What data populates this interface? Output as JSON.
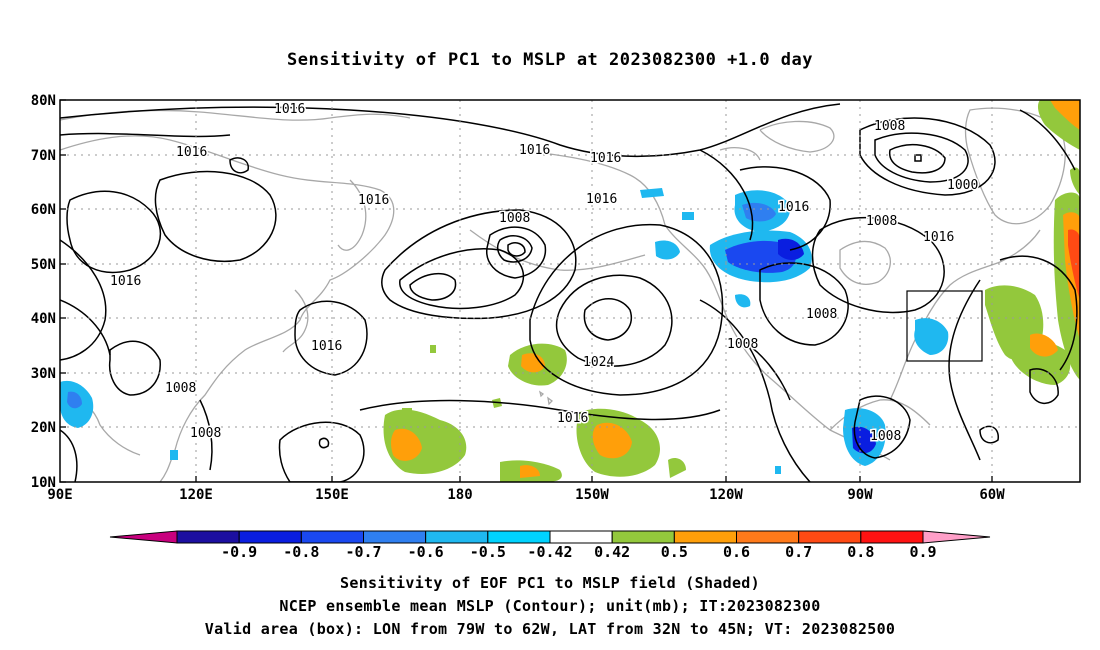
{
  "title": "Sensitivity of PC1 to MSLP at 2023082300 +1.0 day",
  "lat_labels": [
    "80N",
    "70N",
    "60N",
    "50N",
    "40N",
    "30N",
    "20N",
    "10N"
  ],
  "lon_labels": [
    "90E",
    "120E",
    "150E",
    "180",
    "150W",
    "120W",
    "90W",
    "60W"
  ],
  "contour_labels": [
    "1016",
    "1016",
    "1016",
    "1016",
    "1016",
    "1016",
    "1016",
    "1016",
    "1016",
    "1016",
    "1008",
    "1008",
    "1008",
    "1008",
    "1008",
    "1008",
    "1008",
    "1000",
    "1024",
    "1016"
  ],
  "colorbar": {
    "ticks": [
      "-0.9",
      "-0.8",
      "-0.7",
      "-0.6",
      "-0.5",
      "-0.42",
      "0.42",
      "0.5",
      "0.6",
      "0.7",
      "0.8",
      "0.9"
    ],
    "colors": [
      "#c8007e",
      "#1c0fa0",
      "#0a1ee0",
      "#1a48f0",
      "#2f7ff0",
      "#1fb8f0",
      "#00d3ff",
      "#ffffff",
      "#93c83c",
      "#ff9f0a",
      "#ff7a1a",
      "#ff4a14",
      "#ff1212",
      "#ff9fc8"
    ]
  },
  "valid_box": {
    "lon_from": "79W",
    "lon_to": "62W",
    "lat_from": "32N",
    "lat_to": "45N"
  },
  "captions": [
    "Sensitivity of EOF PC1 to MSLP field (Shaded)",
    "NCEP ensemble mean MSLP (Contour); unit(mb); IT:2023082300",
    "Valid area (box): LON from 79W to 62W, LAT from 32N to 45N; VT: 2023082500"
  ]
}
